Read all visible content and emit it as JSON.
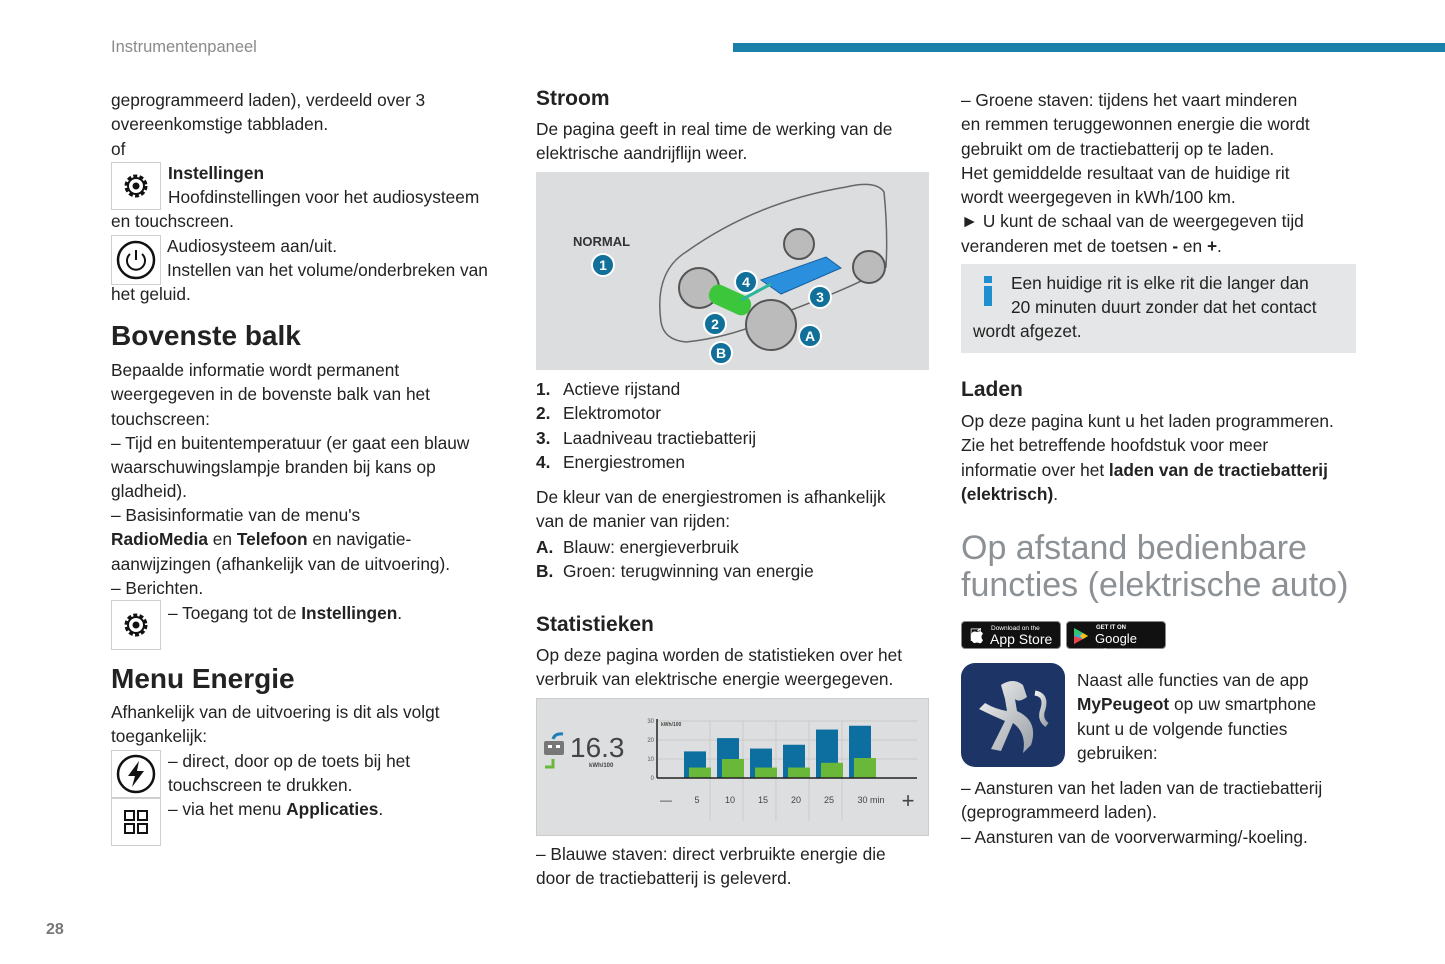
{
  "header": {
    "section": "Instrumentenpaneel",
    "accent_color": "#1a80a9",
    "page_number": "28"
  },
  "col1": {
    "intro": [
      "geprogrammeerd laden), verdeeld over 3",
      "overeenkomstige tabbladen.",
      "of"
    ],
    "settings": [
      "**Instellingen**",
      "Hoofdinstellingen voor het audiosysteem"
    ],
    "settings_cont": [
      "en touchscreen."
    ],
    "power": [
      "Audiosysteem aan/uit.",
      "Instellen van het volume/onderbreken van"
    ],
    "power_cont": [
      "het geluid."
    ],
    "h_top": "Bovenste balk",
    "top1": [
      "Bepaalde informatie wordt permanent",
      "weergegeven in de bovenste balk van het",
      "touchscreen:",
      "–  Tijd en buitentemperatuur (er gaat een blauw",
      "waarschuwingslampje branden bij kans op",
      "gladheid)."
    ],
    "top2": [
      "–  Basisinformatie van de menu's",
      "**RadioMedia** en **Telefoon** en navigatie-",
      "aanwijzingen (afhankelijk van de uitvoering).",
      "–  Berichten."
    ],
    "top3": [
      "–  Toegang tot de **Instellingen**."
    ],
    "h_energy": "Menu Energie",
    "en1": [
      "Afhankelijk van de uitvoering is dit als volgt",
      "toegankelijk:"
    ],
    "en2": [
      "–  direct, door op de toets bij het",
      "touchscreen te drukken."
    ],
    "en3": [
      "–  via het menu **Applicaties**."
    ],
    "icons": [
      "gear-icon",
      "power-icon",
      "gear-icon",
      "bolt-icon",
      "grid-icon"
    ]
  },
  "col2": {
    "h_power": "Stroom",
    "p1": [
      "De pagina geeft in real time de werking van de",
      "elektrische aandrijflijn weer."
    ],
    "diagram": {
      "mode": "NORMAL",
      "callouts": [
        "1",
        "2",
        "3",
        "4",
        "A",
        "B"
      ]
    },
    "list": [
      {
        "n": "1.",
        "t": "Actieve rijstand"
      },
      {
        "n": "2.",
        "t": "Elektromotor"
      },
      {
        "n": "3.",
        "t": "Laadniveau tractiebatterij"
      },
      {
        "n": "4.",
        "t": "Energiestromen"
      }
    ],
    "p2": [
      "De kleur van de energiestromen is afhankelijk",
      "van de manier van rijden:"
    ],
    "list2": [
      {
        "n": "A.",
        "t": "Blauw: energieverbruik"
      },
      {
        "n": "B.",
        "t": "Groen: terugwinning van energie"
      }
    ],
    "h_stats": "Statistieken",
    "p3": [
      "Op deze pagina worden de statistieken over het",
      "verbruik van elektrische energie weergegeven."
    ],
    "p4": [
      "–  Blauwe staven: direct verbruikte energie die",
      "door de tractiebatterij is geleverd."
    ]
  },
  "chart_data": {
    "type": "bar",
    "value": "16.3",
    "value_unit": "kWh/100",
    "ylabel": "kWh/100",
    "ylim": [
      0,
      30
    ],
    "yticks": [
      "0",
      "10",
      "20",
      "30"
    ],
    "categories": [
      "5",
      "10",
      "15",
      "20",
      "25",
      "30 min"
    ],
    "series": [
      {
        "values": [
          14,
          21,
          15.5,
          17.5,
          25.5,
          27.5
        ],
        "color": "#0d6fa0"
      },
      {
        "values": [
          5.5,
          10,
          5.5,
          5.5,
          8,
          10.5
        ],
        "color": "#6ab83a"
      }
    ],
    "minus_label": "—",
    "plus_label": "+"
  },
  "col3": {
    "p1": [
      "–  Groene staven: tijdens het vaart minderen",
      "en remmen teruggewonnen energie die wordt",
      "gebruikt om de tractiebatterij op te laden.",
      "Het gemiddelde resultaat van de huidige rit",
      "wordt weergegeven in kWh/100 km.",
      "►  U kunt de schaal van de weergegeven tijd",
      "veranderen met de toetsen **-** en **+**."
    ],
    "info": [
      "Een huidige rit is elke rit die langer dan",
      "20 minuten duurt zonder dat het contact"
    ],
    "info_cont": [
      "wordt afgezet."
    ],
    "h_charge": "Laden",
    "p2": [
      "Op deze pagina kunt u het laden programmeren.",
      "Zie het betreffende hoofdstuk voor meer",
      "informatie over het **laden van de tractiebatterij**",
      "**(elektrisch)**."
    ],
    "h_remote": [
      "Op afstand bedienbare",
      "functies (elektrische auto)"
    ],
    "appstore": {
      "small": "Download on the",
      "big": "App Store"
    },
    "googleplay": {
      "small": "GET IT ON",
      "big": "Google Play"
    },
    "p3": [
      "Naast alle functies van de app",
      "**MyPeugeot** op uw smartphone",
      "kunt u de volgende functies",
      "gebruiken:"
    ],
    "p4": [
      "–  Aansturen van het laden van de tractiebatterij",
      "(geprogrammeerd laden).",
      "–  Aansturen van de voorverwarming/-koeling."
    ]
  }
}
